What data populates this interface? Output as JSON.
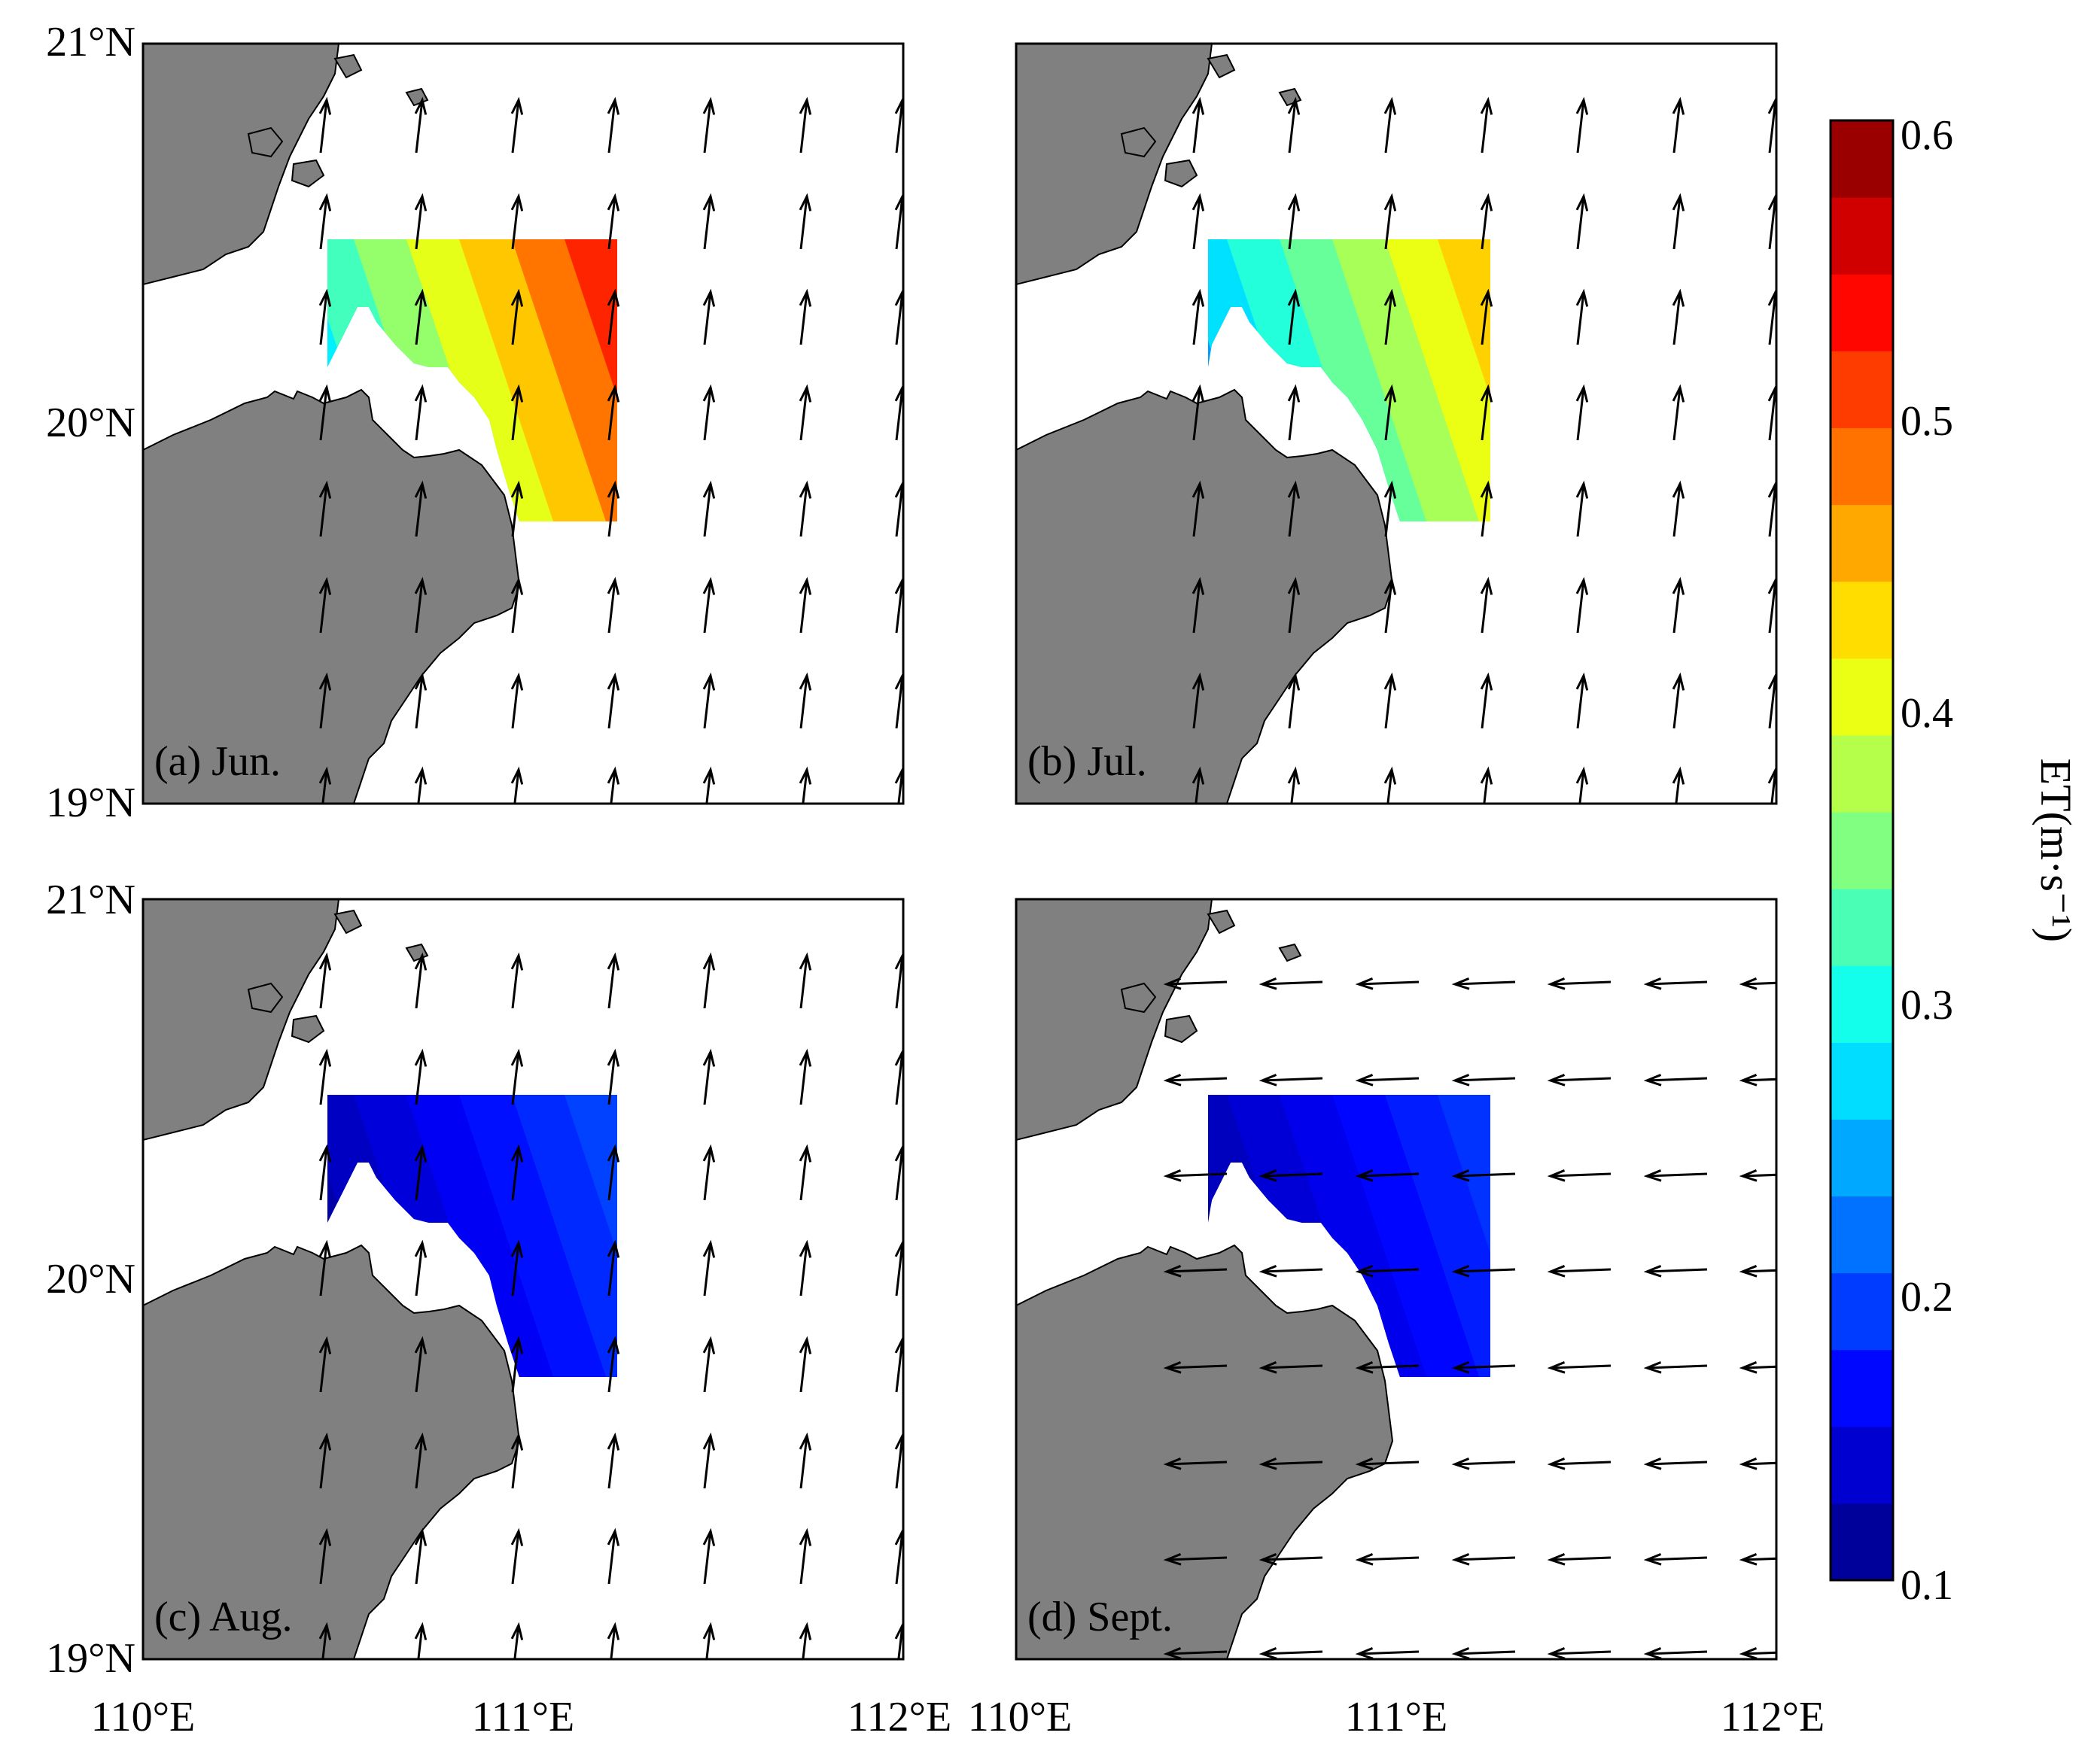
{
  "panels": [
    {
      "id": "a",
      "label": "(a) Jun.",
      "field_min": 0.28,
      "field_max": 0.6,
      "wind_dir": "north"
    },
    {
      "id": "b",
      "label": "(b) Jul.",
      "field_min": 0.24,
      "field_max": 0.5,
      "wind_dir": "north"
    },
    {
      "id": "c",
      "label": "(c) Aug.",
      "field_min": 0.12,
      "field_max": 0.22,
      "wind_dir": "north"
    },
    {
      "id": "d",
      "label": "(d) Sept.",
      "field_min": 0.12,
      "field_max": 0.21,
      "wind_dir": "west"
    }
  ],
  "axes": {
    "lat_ticks": [
      "21°N",
      "20°N",
      "19°N"
    ],
    "lon_ticks": [
      "110°E",
      "111°E",
      "112°E"
    ],
    "lat_range": [
      19,
      21
    ],
    "lon_range": [
      110,
      112
    ]
  },
  "colorbar": {
    "label": "ET(m·s⁻¹)",
    "ticks": [
      "0.6",
      "0.5",
      "0.4",
      "0.3",
      "0.2",
      "0.1"
    ],
    "range": [
      0.1,
      0.6
    ],
    "colormap": "jet"
  },
  "colors": {
    "land": "#808080",
    "sea": "#ffffff",
    "arrows": "#000000"
  }
}
